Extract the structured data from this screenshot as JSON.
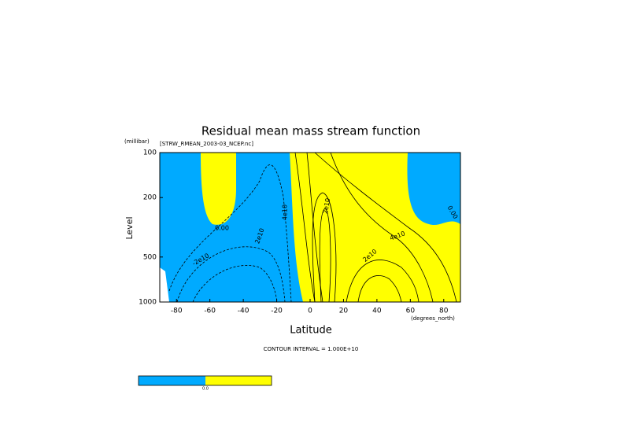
{
  "chart_data": {
    "type": "contour",
    "title": "Residual mean mass stream function",
    "subtitle": "[STRW_RMEAN_2003-03_NCEP.nc]",
    "y_unit": "(millibar)",
    "y_label": "Level",
    "x_label": "Latitude",
    "x_unit": "(degrees_north)",
    "xlim": [
      -90,
      90
    ],
    "xticks": [
      -80,
      -60,
      -40,
      -20,
      0,
      20,
      40,
      60,
      80
    ],
    "ylim": [
      1000,
      100
    ],
    "yticks": [
      100,
      200,
      500,
      1000
    ],
    "log_y": true,
    "fill_colors": [
      "#00aaff",
      "#ffff00"
    ],
    "contour_labels": [
      "0.00",
      "2e10",
      "-2e10",
      "4e10",
      "2e10",
      "4e10",
      "2e10",
      "0.00"
    ],
    "footer": "CONTOUR INTERVAL = 1.000E+10",
    "colorbar_label": "0.0"
  }
}
